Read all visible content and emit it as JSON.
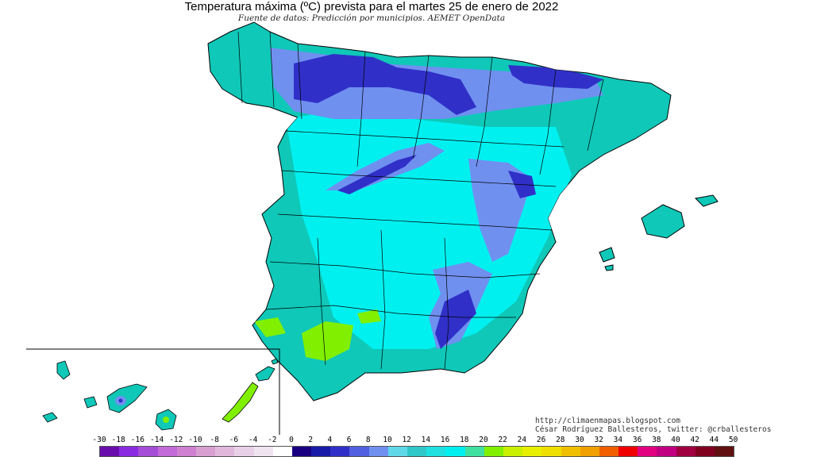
{
  "title": "Temperatura máxima (ºC) prevista para el martes 25 de enero de 2022",
  "subtitle": "Fuente de datos: Predicción por municipios. AEMET OpenData",
  "credits": {
    "url": "http://climaenmapas.blogspot.com",
    "author": "César Rodríguez Ballesteros, twitter: @crballesteros"
  },
  "legend": {
    "labels": [
      "-30",
      "-18",
      "-16",
      "-14",
      "-12",
      "-10",
      "-8",
      "-6",
      "-4",
      "-2",
      "0",
      "2",
      "4",
      "6",
      "8",
      "10",
      "12",
      "14",
      "16",
      "18",
      "20",
      "22",
      "24",
      "26",
      "28",
      "30",
      "32",
      "34",
      "36",
      "38",
      "40",
      "42",
      "44",
      "50"
    ],
    "colors": [
      "#6a0dad",
      "#8a2be2",
      "#a64dd8",
      "#c26ad8",
      "#d080d0",
      "#d8a0d0",
      "#e0b8dc",
      "#e8d0e8",
      "#f0e4f0",
      "#ffffff",
      "#1a0080",
      "#1a1aa8",
      "#3030c8",
      "#5060e0",
      "#7090f0",
      "#60d8e8",
      "#30c8c8",
      "#20e0e0",
      "#00f0f0",
      "#40e0a0",
      "#80f000",
      "#c8f000",
      "#e8f000",
      "#f0e000",
      "#f0c000",
      "#f0a000",
      "#f06000",
      "#f00000",
      "#e00080",
      "#c00080",
      "#a00040",
      "#800020",
      "#601010"
    ]
  },
  "map_data": {
    "region": "España",
    "variable": "Temperatura máxima prevista",
    "units": "ºC",
    "colors": {
      "coast": "#0fc8b8",
      "interior": "#00f0f0",
      "high_mountains": "#3030c8",
      "mountains": "#7090f0",
      "guadalquivir_valley": "#80f000",
      "sea": "#ffffff"
    }
  }
}
